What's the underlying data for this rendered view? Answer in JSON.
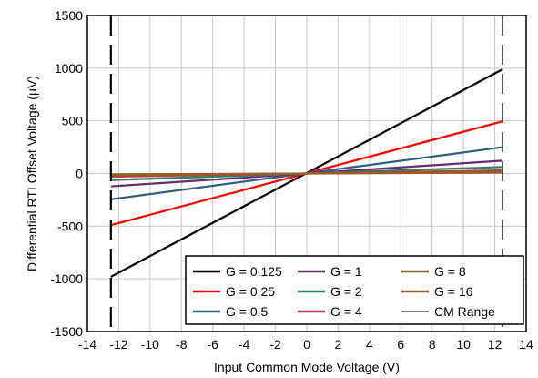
{
  "chart_data": {
    "type": "line",
    "title": "",
    "xlabel": "Input Common Mode Voltage (V)",
    "ylabel": "Differential RTI Offset Voltage (µV)",
    "xlim": [
      -14,
      14
    ],
    "ylim": [
      -1500,
      1500
    ],
    "xticks": [
      "-14",
      "-12",
      "-10",
      "-8",
      "-6",
      "-4",
      "-2",
      "0",
      "2",
      "4",
      "6",
      "8",
      "10",
      "12",
      "14"
    ],
    "yticks": [
      "-1500",
      "-1000",
      "-500",
      "0",
      "500",
      "1000",
      "1500"
    ],
    "grid": true,
    "legend_position": "bottom-right",
    "series": [
      {
        "name": "G = 0.125",
        "color": "#000000",
        "x": [
          -12.5,
          12.5
        ],
        "y": [
          -980,
          990
        ]
      },
      {
        "name": "G = 0.25",
        "color": "#ff0000",
        "x": [
          -12.5,
          12.5
        ],
        "y": [
          -490,
          495
        ]
      },
      {
        "name": "G = 0.5",
        "color": "#2f6080",
        "x": [
          -12.5,
          12.5
        ],
        "y": [
          -245,
          250
        ]
      },
      {
        "name": "G = 1",
        "color": "#6a2c70",
        "x": [
          -12.5,
          12.5
        ],
        "y": [
          -122,
          122
        ]
      },
      {
        "name": "G = 2",
        "color": "#2e8060",
        "x": [
          -12.5,
          12.5
        ],
        "y": [
          -62,
          62
        ]
      },
      {
        "name": "G = 4",
        "color": "#b04050",
        "x": [
          -12.5,
          12.5
        ],
        "y": [
          -30,
          30
        ]
      },
      {
        "name": "G = 8",
        "color": "#7a6a30",
        "x": [
          -12.5,
          12.5
        ],
        "y": [
          -15,
          15
        ]
      },
      {
        "name": "G = 16",
        "color": "#a05a20",
        "x": [
          -12.5,
          12.5
        ],
        "y": [
          -8,
          8
        ]
      }
    ],
    "cm_range": {
      "name": "CM Range",
      "color": "#000000",
      "x": [
        -12.5,
        12.5
      ]
    }
  }
}
